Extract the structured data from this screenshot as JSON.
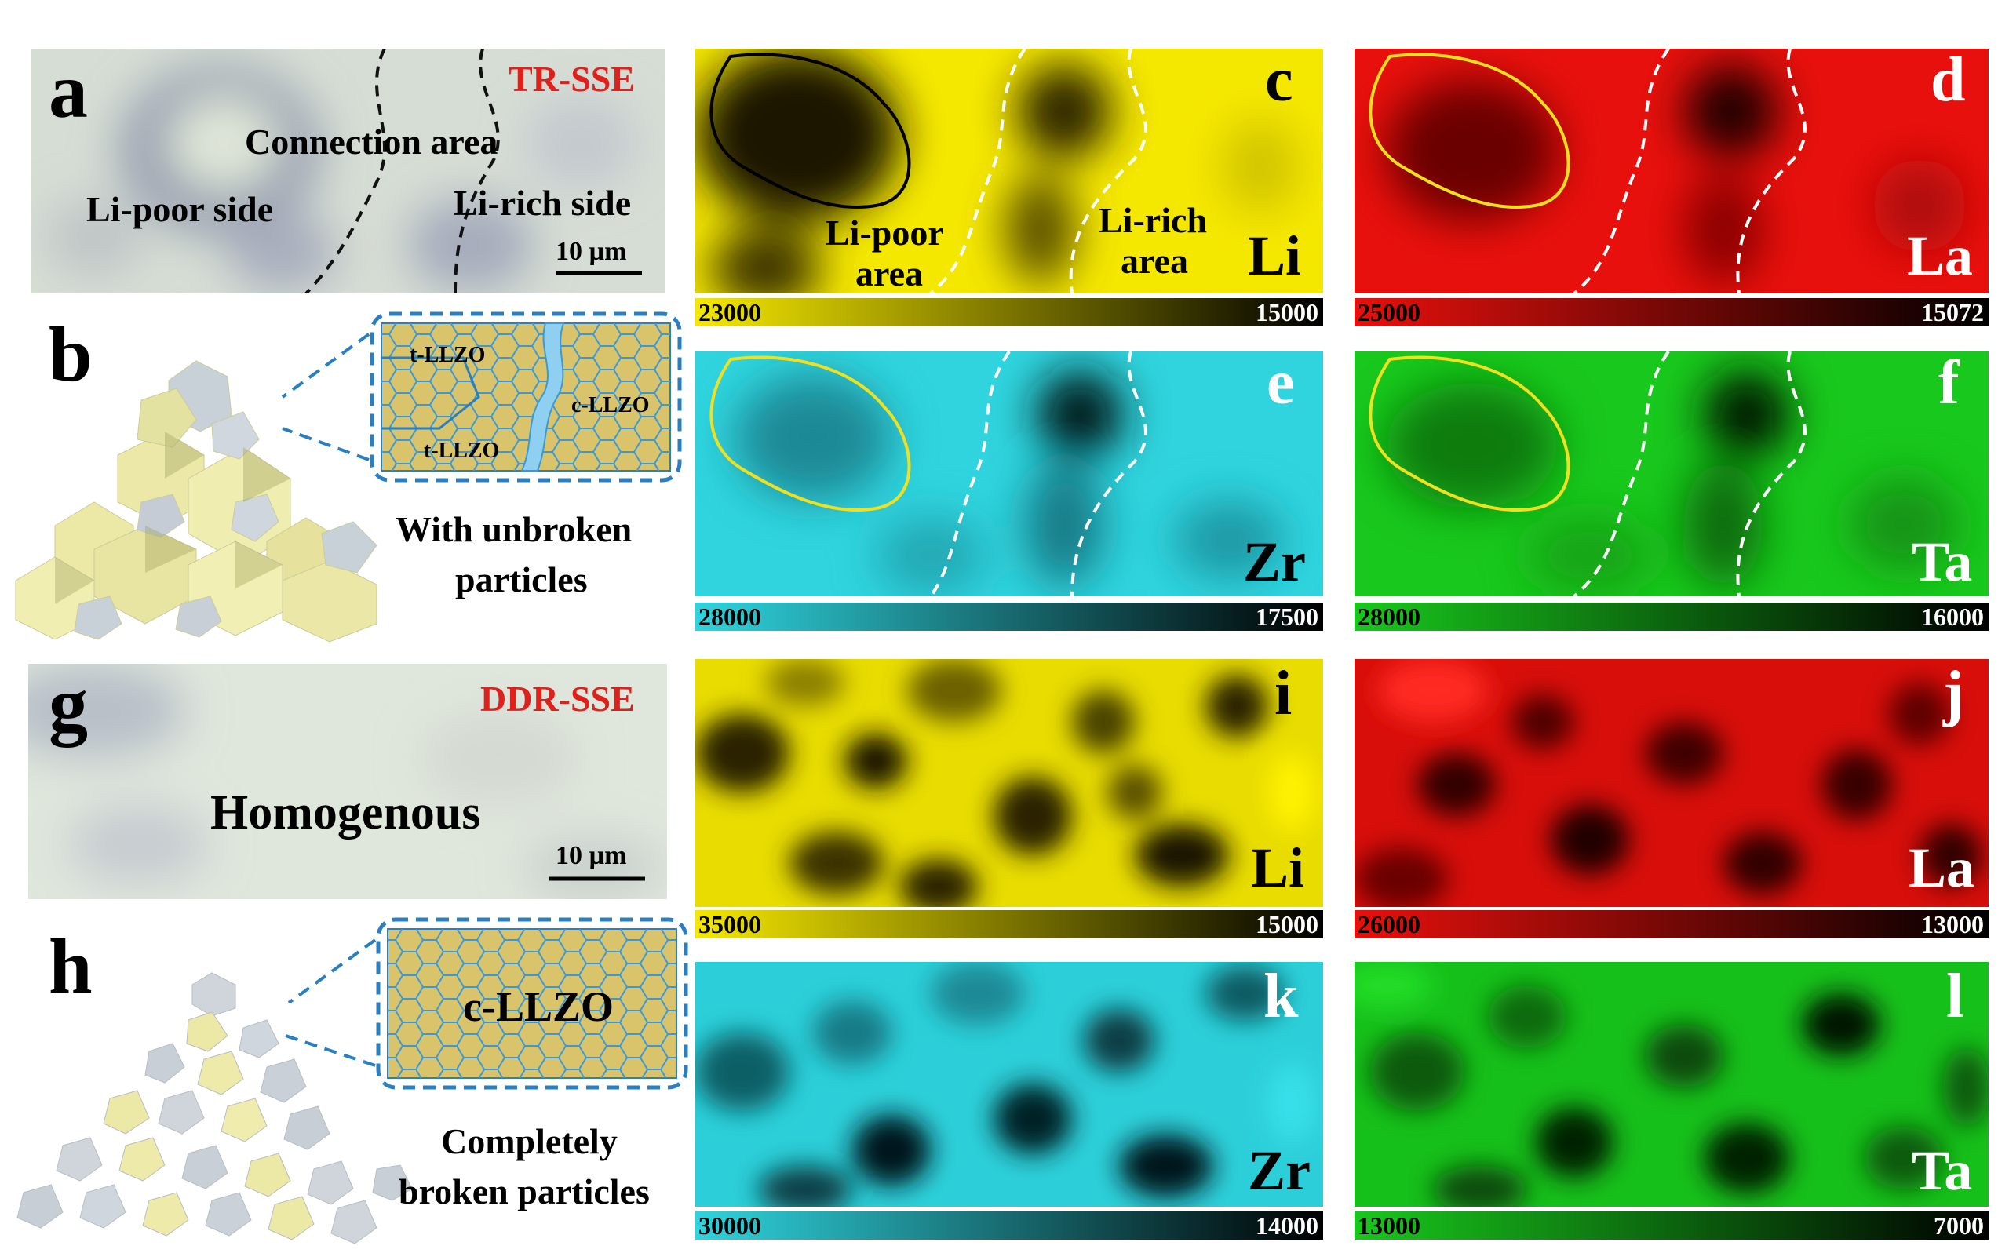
{
  "panels": {
    "a": {
      "letter": "a",
      "sample": "TR-SSE",
      "labels": [
        "Connection area",
        "Li-poor side",
        "Li-rich side"
      ],
      "scale": "10 µm"
    },
    "b": {
      "letter": "b",
      "grains": [
        "t-LLZO",
        "c-LLZO",
        "t-LLZO"
      ],
      "caption_line1": "With unbroken",
      "caption_line2": "particles"
    },
    "c": {
      "letter": "c",
      "element": "Li",
      "area1_line1": "Li-poor",
      "area1_line2": "area",
      "area2_line1": "Li-rich",
      "area2_line2": "area",
      "bar_max": "23000",
      "bar_min": "15000"
    },
    "d": {
      "letter": "d",
      "element": "La",
      "bar_max": "25000",
      "bar_min": "15072"
    },
    "e": {
      "letter": "e",
      "element": "Zr",
      "bar_max": "28000",
      "bar_min": "17500"
    },
    "f": {
      "letter": "f",
      "element": "Ta",
      "bar_max": "28000",
      "bar_min": "16000"
    },
    "g": {
      "letter": "g",
      "sample": "DDR-SSE",
      "label": "Homogenous",
      "scale": "10 µm"
    },
    "h": {
      "letter": "h",
      "grain": "c-LLZO",
      "caption_line1": "Completely",
      "caption_line2": "broken particles"
    },
    "i": {
      "letter": "i",
      "element": "Li",
      "bar_max": "35000",
      "bar_min": "15000"
    },
    "j": {
      "letter": "j",
      "element": "La",
      "bar_max": "26000",
      "bar_min": "13000"
    },
    "k": {
      "letter": "k",
      "element": "Zr",
      "bar_max": "30000",
      "bar_min": "14000"
    },
    "l": {
      "letter": "l",
      "element": "Ta",
      "bar_max": "13000",
      "bar_min": "7000"
    }
  },
  "colors": {
    "Li": "#f5e800",
    "La": "#e8100c",
    "Zr": "#2fd4de",
    "Ta": "#18c81c",
    "sample_label": "#e0201b",
    "grain_fill": "#d9c36b",
    "grain_line": "#3a9ad9",
    "crack": "#8fd0f0"
  }
}
